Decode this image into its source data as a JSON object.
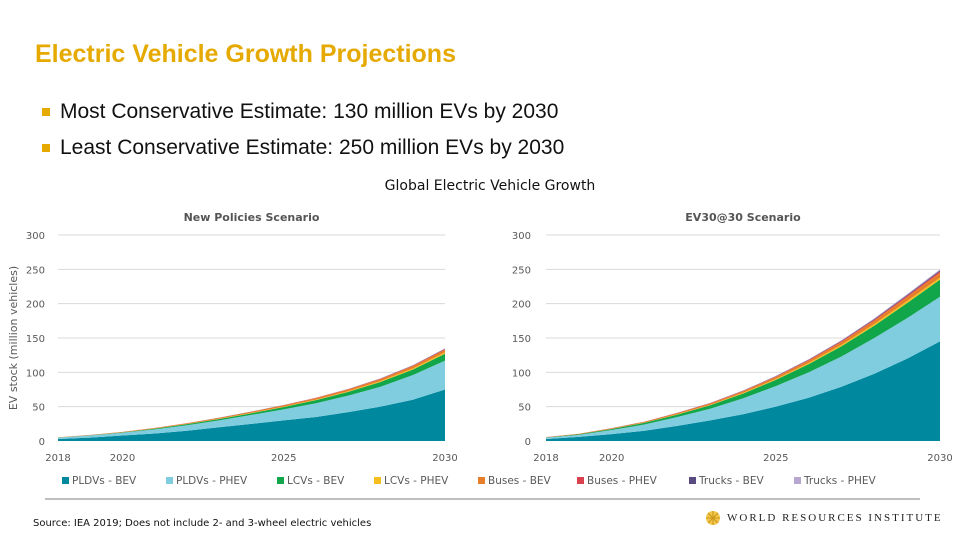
{
  "slide": {
    "title": "Electric Vehicle Growth Projections",
    "bullets": [
      "Most Conservative Estimate: 130 million EVs by 2030",
      "Least Conservative Estimate: 250 million EVs by 2030"
    ],
    "figure_title": "Global Electric Vehicle Growth",
    "source": "Source: IEA 2019; Does not include 2- and 3-wheel electric vehicles",
    "logo_text": "WORLD RESOURCES INSTITUTE"
  },
  "chart_data": [
    {
      "type": "area",
      "stacked": true,
      "title": "New Policies Scenario",
      "ylabel": "EV stock (million vehicles)",
      "xlabel": "",
      "ylim": [
        0,
        300
      ],
      "yticks": [
        0,
        50,
        100,
        150,
        200,
        250,
        300
      ],
      "xticks": [
        2018,
        2020,
        2025,
        2030
      ],
      "grid": true,
      "legend": "bottom",
      "x": [
        2018,
        2019,
        2020,
        2021,
        2022,
        2023,
        2024,
        2025,
        2026,
        2027,
        2028,
        2029,
        2030
      ],
      "series": [
        {
          "name": "PLDVs - BEV",
          "color": "#00889e",
          "values": [
            3,
            5,
            8,
            11,
            15,
            20,
            25,
            30,
            35,
            42,
            50,
            60,
            75
          ]
        },
        {
          "name": "PLDVs - PHEV",
          "color": "#80cde0",
          "values": [
            2,
            3,
            4,
            6,
            8,
            10,
            13,
            16,
            20,
            24,
            29,
            36,
            42
          ]
        },
        {
          "name": "LCVs - BEV",
          "color": "#12a64b",
          "values": [
            0.1,
            0.3,
            0.5,
            1,
            1.5,
            2,
            2.5,
            3.5,
            4.5,
            5.5,
            7,
            8,
            10
          ]
        },
        {
          "name": "LCVs - PHEV",
          "color": "#f6bf1f",
          "values": [
            0,
            0.1,
            0.1,
            0.2,
            0.3,
            0.4,
            0.5,
            0.6,
            0.8,
            1,
            1.2,
            1.5,
            2
          ]
        },
        {
          "name": "Buses - BEV",
          "color": "#e77f2a",
          "values": [
            0.3,
            0.4,
            0.6,
            0.8,
            1,
            1.3,
            1.6,
            1.9,
            2.2,
            2.6,
            3,
            3.5,
            4
          ]
        },
        {
          "name": "Buses - PHEV",
          "color": "#d9414e",
          "values": [
            0.05,
            0.05,
            0.1,
            0.1,
            0.15,
            0.2,
            0.25,
            0.3,
            0.4,
            0.5,
            0.6,
            0.8,
            1
          ]
        },
        {
          "name": "Trucks - BEV",
          "color": "#5a4a82",
          "values": [
            0,
            0,
            0,
            0.02,
            0.04,
            0.06,
            0.08,
            0.1,
            0.15,
            0.2,
            0.25,
            0.35,
            0.5
          ]
        },
        {
          "name": "Trucks - PHEV",
          "color": "#b7a6cf",
          "values": [
            0,
            0,
            0,
            0.01,
            0.02,
            0.03,
            0.05,
            0.07,
            0.1,
            0.13,
            0.17,
            0.22,
            0.3
          ]
        }
      ]
    },
    {
      "type": "area",
      "stacked": true,
      "title": "EV30@30 Scenario",
      "ylabel": "",
      "xlabel": "",
      "ylim": [
        0,
        300
      ],
      "yticks": [
        0,
        50,
        100,
        150,
        200,
        250,
        300
      ],
      "xticks": [
        2018,
        2020,
        2025,
        2030
      ],
      "grid": true,
      "legend": "bottom",
      "x": [
        2018,
        2019,
        2020,
        2021,
        2022,
        2023,
        2024,
        2025,
        2026,
        2027,
        2028,
        2029,
        2030
      ],
      "series": [
        {
          "name": "PLDVs - BEV",
          "color": "#00889e",
          "values": [
            3,
            6,
            10,
            15,
            22,
            30,
            39,
            50,
            63,
            79,
            98,
            120,
            145
          ]
        },
        {
          "name": "PLDVs - PHEV",
          "color": "#80cde0",
          "values": [
            2,
            3,
            6,
            9,
            13,
            17,
            23,
            30,
            37,
            44,
            52,
            59,
            65
          ]
        },
        {
          "name": "LCVs - BEV",
          "color": "#12a64b",
          "values": [
            0.3,
            0.8,
            1.5,
            2.5,
            3.5,
            5,
            7,
            9,
            12,
            15,
            18,
            22,
            25
          ]
        },
        {
          "name": "LCVs - PHEV",
          "color": "#f6bf1f",
          "values": [
            0,
            0.1,
            0.2,
            0.3,
            0.5,
            0.7,
            1,
            1.3,
            1.6,
            2,
            2.4,
            2.8,
            3
          ]
        },
        {
          "name": "Buses - BEV",
          "color": "#e77f2a",
          "values": [
            0.4,
            0.6,
            0.9,
            1.2,
            1.6,
            2,
            2.5,
            3,
            3.6,
            4.3,
            5,
            6,
            7
          ]
        },
        {
          "name": "Buses - PHEV",
          "color": "#d9414e",
          "values": [
            0.05,
            0.1,
            0.15,
            0.2,
            0.3,
            0.4,
            0.5,
            0.7,
            0.9,
            1.1,
            1.4,
            1.7,
            2
          ]
        },
        {
          "name": "Trucks - BEV",
          "color": "#5a4a82",
          "values": [
            0,
            0,
            0.05,
            0.1,
            0.15,
            0.2,
            0.3,
            0.4,
            0.5,
            0.7,
            0.9,
            1.2,
            1.5
          ]
        },
        {
          "name": "Trucks - PHEV",
          "color": "#b7a6cf",
          "values": [
            0,
            0,
            0.05,
            0.1,
            0.15,
            0.2,
            0.3,
            0.4,
            0.5,
            0.7,
            0.9,
            1.2,
            1.5
          ]
        }
      ]
    }
  ],
  "colors": {
    "title": "#e5a900",
    "logo": "#e5a900"
  }
}
